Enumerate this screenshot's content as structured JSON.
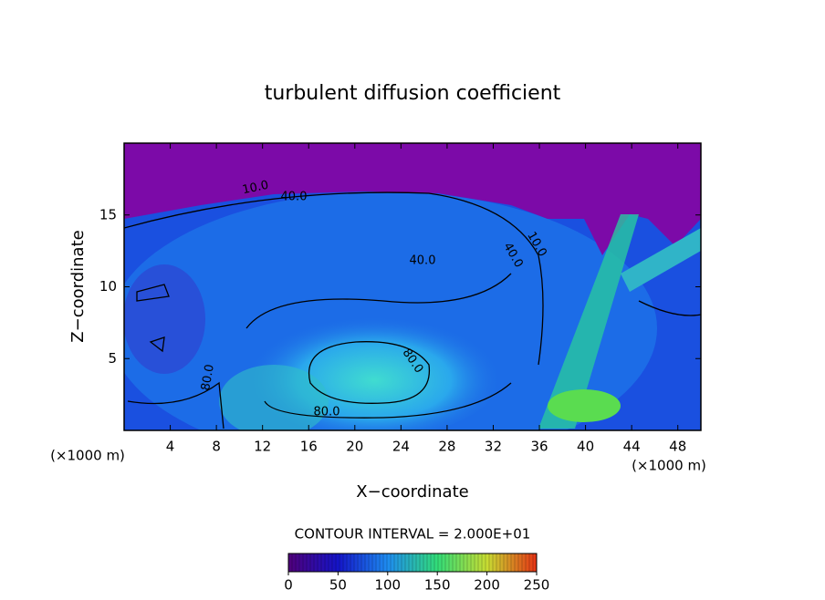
{
  "chart_data": {
    "type": "contour",
    "title": "turbulent diffusion coefficient",
    "x_label": "X−coordinate",
    "y_label": "Z−coordinate",
    "x_unit": "(×1000 m)",
    "y_unit": "(×1000 m)",
    "xlim": [
      0,
      50
    ],
    "ylim": [
      0,
      20
    ],
    "xticks": [
      4,
      8,
      12,
      16,
      20,
      24,
      28,
      32,
      36,
      40,
      44,
      48
    ],
    "yticks": [
      5,
      10,
      15
    ],
    "contour_labels": [
      {
        "value": 10,
        "label": "10.0"
      },
      {
        "value": 40,
        "label": "40.0"
      },
      {
        "value": 40,
        "label": "40.0"
      },
      {
        "value": 40,
        "label": "40.0"
      },
      {
        "value": 10,
        "label": "10.0"
      },
      {
        "value": 80,
        "label": "80.0"
      },
      {
        "value": 80,
        "label": "80.0"
      },
      {
        "value": 80,
        "label": "80.0"
      }
    ],
    "contour_interval": "CONTOUR INTERVAL = 2.000E+01",
    "colorbar": {
      "lim": [
        0,
        250
      ],
      "ticks": [
        0,
        50,
        100,
        150,
        200,
        250
      ],
      "colors": [
        "#50007a",
        "#1414c8",
        "#1e8cf0",
        "#32dc78",
        "#c8dc32",
        "#e63214"
      ]
    }
  }
}
